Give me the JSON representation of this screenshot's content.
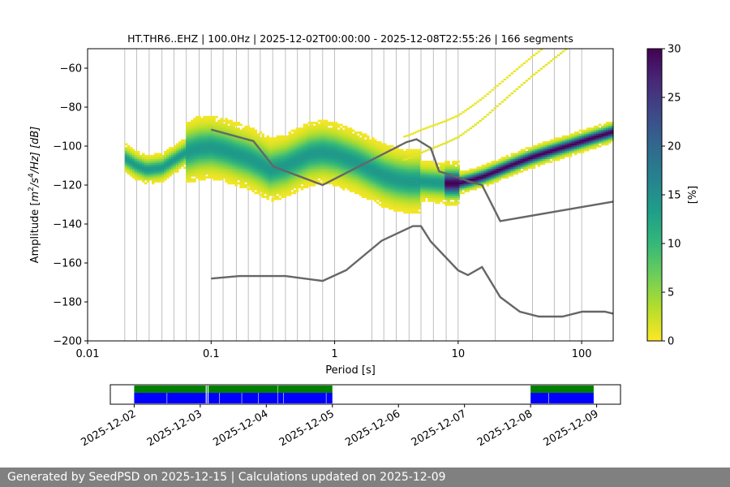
{
  "chart_data": [
    {
      "type": "heatmap",
      "title": "HT.THR6..EHZ | 100.0Hz | 2025-12-02T00:00:00 - 2025-12-08T22:55:26 | 166 segments",
      "xlabel": "Period [s]",
      "ylabel_parts": {
        "pre": "Amplitude [",
        "m": "m",
        "exp2": "2",
        "s": "/s",
        "exp4": "4",
        "hz": "/Hz] [dB]"
      },
      "x_scale": "log",
      "xlim": [
        0.01,
        180
      ],
      "ylim": [
        -200,
        -50
      ],
      "x_ticks": [
        {
          "value": 0.01,
          "label": "0.01"
        },
        {
          "value": 0.1,
          "label": "0.1"
        },
        {
          "value": 1,
          "label": "1"
        },
        {
          "value": 10,
          "label": "10"
        },
        {
          "value": 100,
          "label": "100"
        }
      ],
      "y_ticks": [
        {
          "value": -60,
          "label": "−60"
        },
        {
          "value": -80,
          "label": "−80"
        },
        {
          "value": -100,
          "label": "−100"
        },
        {
          "value": -120,
          "label": "−120"
        },
        {
          "value": -140,
          "label": "−140"
        },
        {
          "value": -160,
          "label": "−160"
        },
        {
          "value": -180,
          "label": "−180"
        },
        {
          "value": -200,
          "label": "−200"
        }
      ],
      "colorbar": {
        "label": "[%]",
        "range": [
          0,
          30
        ],
        "ticks": [
          {
            "value": 0,
            "label": "0"
          },
          {
            "value": 5,
            "label": "5"
          },
          {
            "value": 10,
            "label": "10"
          },
          {
            "value": 15,
            "label": "15"
          },
          {
            "value": 20,
            "label": "20"
          },
          {
            "value": 25,
            "label": "25"
          },
          {
            "value": 30,
            "label": "30"
          }
        ],
        "colormap": [
          "#fde725",
          "#b5de2b",
          "#6ece58",
          "#35b779",
          "#1f9e89",
          "#26828e",
          "#31688e",
          "#3e4989",
          "#482878",
          "#440154"
        ]
      },
      "period_grid_lines": [
        0.02,
        0.025,
        0.0315,
        0.04,
        0.05,
        0.063,
        0.08,
        0.1,
        0.125,
        0.16,
        0.2,
        0.25,
        0.315,
        0.4,
        0.5,
        0.63,
        0.8,
        1,
        2,
        2.5,
        3.15,
        4,
        5,
        6.3,
        8,
        10,
        20,
        40,
        60,
        80,
        100
      ],
      "high_noise_model": [
        [
          0.1,
          -91.5
        ],
        [
          0.22,
          -97.4
        ],
        [
          0.32,
          -110.5
        ],
        [
          0.8,
          -120
        ],
        [
          3.8,
          -98
        ],
        [
          4.6,
          -96.5
        ],
        [
          6,
          -101
        ],
        [
          7,
          -113
        ],
        [
          10,
          -116
        ],
        [
          12,
          -118
        ],
        [
          15.6,
          -120
        ],
        [
          21.9,
          -138.5
        ],
        [
          180,
          -128.5
        ]
      ],
      "low_noise_model": [
        [
          0.1,
          -168
        ],
        [
          0.17,
          -166.7
        ],
        [
          0.4,
          -166.7
        ],
        [
          0.8,
          -169.2
        ],
        [
          1.24,
          -163.7
        ],
        [
          2.4,
          -148.6
        ],
        [
          4.3,
          -141.1
        ],
        [
          5,
          -141.1
        ],
        [
          6,
          -149
        ],
        [
          10,
          -163.8
        ],
        [
          12,
          -166.2
        ],
        [
          15.6,
          -162.1
        ],
        [
          21.9,
          -177.5
        ],
        [
          31.6,
          -185
        ],
        [
          45,
          -187.5
        ],
        [
          70,
          -187.5
        ],
        [
          101,
          -185
        ],
        [
          154,
          -185
        ],
        [
          180,
          -186
        ]
      ],
      "psd_mode_curve": [
        [
          0.02,
          -106
        ],
        [
          0.025,
          -110
        ],
        [
          0.03,
          -112
        ],
        [
          0.04,
          -111
        ],
        [
          0.05,
          -107
        ],
        [
          0.063,
          -103
        ],
        [
          0.08,
          -101
        ],
        [
          0.1,
          -100.5
        ],
        [
          0.13,
          -102
        ],
        [
          0.16,
          -104
        ],
        [
          0.2,
          -106
        ],
        [
          0.25,
          -109
        ],
        [
          0.3,
          -112
        ],
        [
          0.4,
          -110
        ],
        [
          0.5,
          -107
        ],
        [
          0.63,
          -104
        ],
        [
          0.8,
          -103
        ],
        [
          1,
          -104
        ],
        [
          1.5,
          -108
        ],
        [
          2,
          -112
        ],
        [
          2.5,
          -115
        ],
        [
          3.15,
          -117
        ],
        [
          4,
          -118
        ],
        [
          5,
          -118
        ],
        [
          6.3,
          -118.5
        ],
        [
          8,
          -119
        ],
        [
          10,
          -119
        ],
        [
          12.6,
          -117.5
        ],
        [
          16,
          -115.5
        ],
        [
          20,
          -113
        ],
        [
          25,
          -110.5
        ],
        [
          31.5,
          -108
        ],
        [
          40,
          -105.5
        ],
        [
          50,
          -103.5
        ],
        [
          63,
          -101.5
        ],
        [
          80,
          -99.5
        ],
        [
          100,
          -97.5
        ],
        [
          126,
          -95.5
        ],
        [
          160,
          -93.5
        ],
        [
          180,
          -92.5
        ]
      ]
    },
    {
      "type": "timeline",
      "x_ticks": [
        {
          "value": "2025-12-02",
          "label": "2025-12-02"
        },
        {
          "value": "2025-12-03",
          "label": "2025-12-03"
        },
        {
          "value": "2025-12-04",
          "label": "2025-12-04"
        },
        {
          "value": "2025-12-05",
          "label": "2025-12-05"
        },
        {
          "value": "2025-12-06",
          "label": "2025-12-06"
        },
        {
          "value": "2025-12-07",
          "label": "2025-12-07"
        },
        {
          "value": "2025-12-08",
          "label": "2025-12-08"
        },
        {
          "value": "2025-12-09",
          "label": "2025-12-09"
        }
      ],
      "xlim": [
        "2025-12-01T15:20:00",
        "2025-12-09T08:40:00"
      ],
      "data_available_color": "#008000",
      "psd_segments_color": "#0000ff",
      "data_available": [
        [
          "2025-12-02T00:00:00",
          "2025-12-03T02:00:00"
        ],
        [
          "2025-12-03T02:20:00",
          "2025-12-03T02:40:00"
        ],
        [
          "2025-12-03T03:00:00",
          "2025-12-04T04:10:00"
        ],
        [
          "2025-12-04T04:20:00",
          "2025-12-05T00:00:00"
        ],
        [
          "2025-12-08T00:00:00",
          "2025-12-08T22:55:26"
        ]
      ],
      "psd_segments": [
        [
          "2025-12-02T00:00:00",
          "2025-12-02T11:50:00"
        ],
        [
          "2025-12-02T12:00:00",
          "2025-12-03T02:00:00"
        ],
        [
          "2025-12-03T02:20:00",
          "2025-12-03T02:40:00"
        ],
        [
          "2025-12-03T03:00:00",
          "2025-12-03T06:50:00"
        ],
        [
          "2025-12-03T07:00:00",
          "2025-12-03T15:00:00"
        ],
        [
          "2025-12-03T15:10:00",
          "2025-12-03T21:00:00"
        ],
        [
          "2025-12-03T21:10:00",
          "2025-12-04T04:10:00"
        ],
        [
          "2025-12-04T04:20:00",
          "2025-12-04T06:10:00"
        ],
        [
          "2025-12-04T06:20:00",
          "2025-12-04T21:40:00"
        ],
        [
          "2025-12-04T21:50:00",
          "2025-12-05T00:00:00"
        ],
        [
          "2025-12-08T00:00:00",
          "2025-12-08T06:30:00"
        ],
        [
          "2025-12-08T06:40:00",
          "2025-12-08T22:55:26"
        ]
      ]
    }
  ],
  "footer": {
    "text": "Generated by SeedPSD on 2025-12-15 | Calculations updated on 2025-12-09"
  }
}
